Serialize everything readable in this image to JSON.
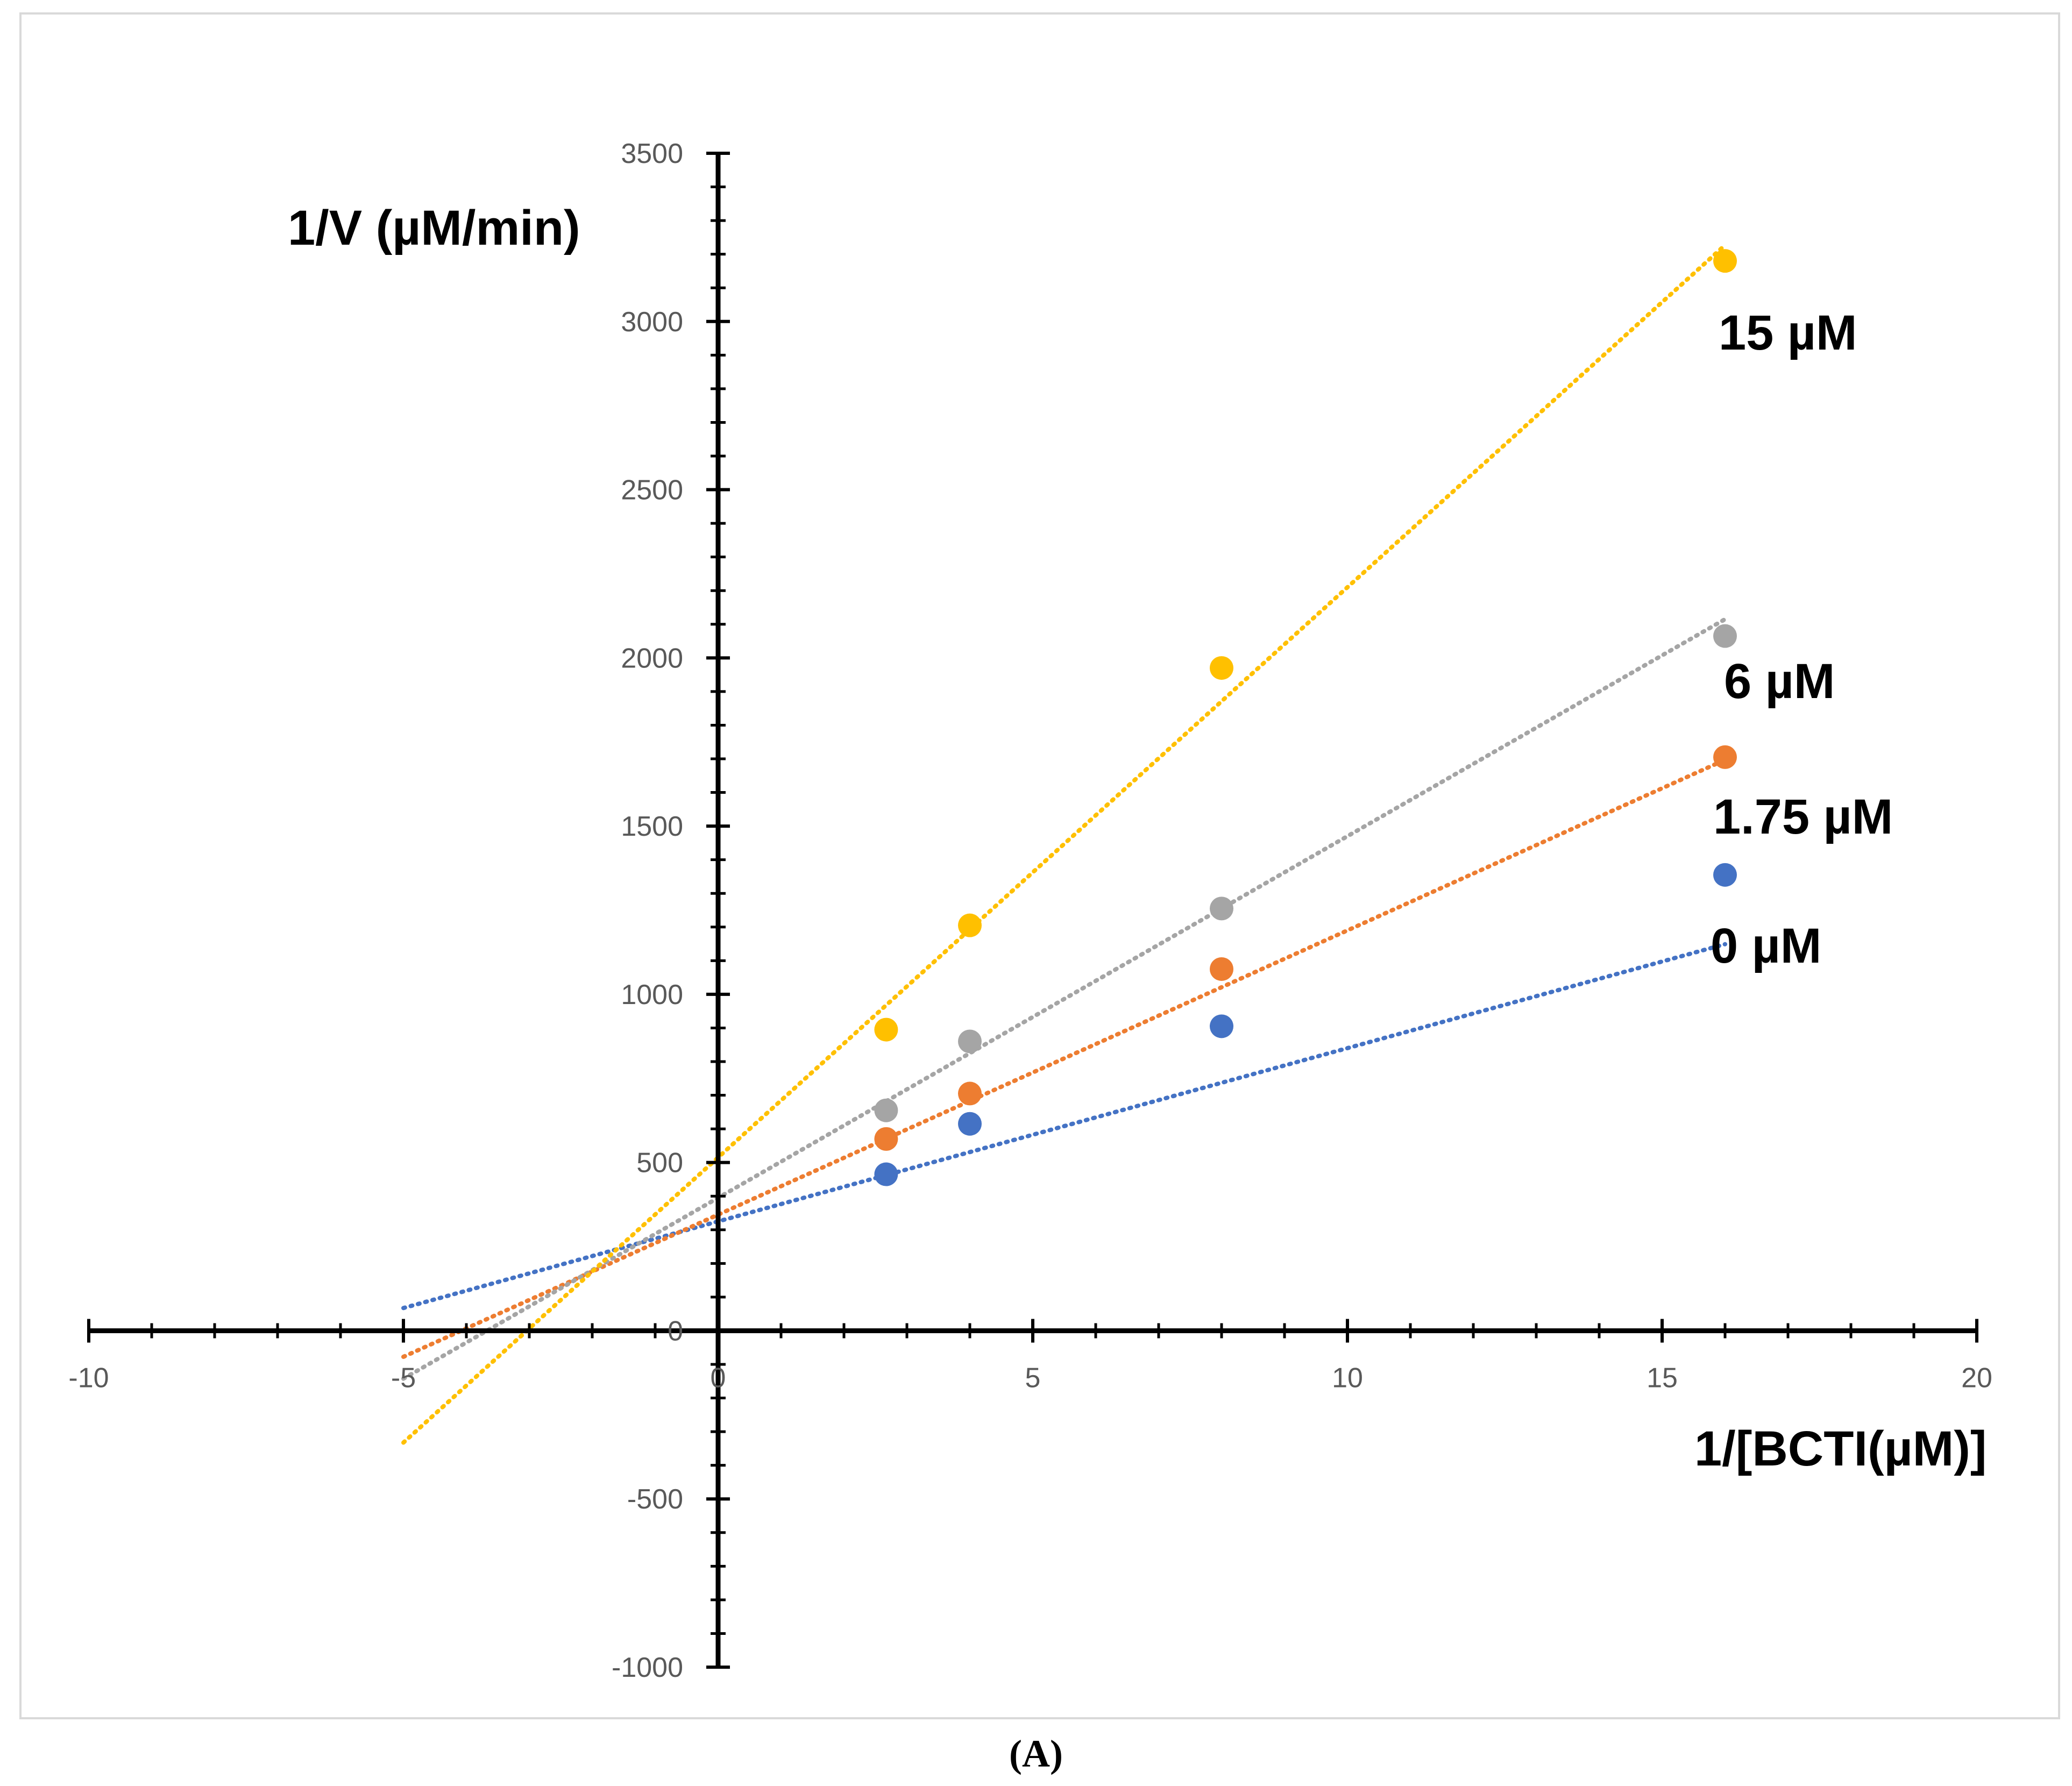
{
  "chart_data": {
    "type": "scatter",
    "title": "",
    "xlabel": "1/[BCTI(µM)]",
    "ylabel": "1/V (µM/min)",
    "xlim": [
      -10,
      20
    ],
    "ylim": [
      -1000,
      3500
    ],
    "x_ticks": [
      "-10",
      "-5",
      "0",
      "5",
      "10",
      "15",
      "20"
    ],
    "y_ticks": [
      "-1000",
      "-500",
      "0",
      "500",
      "1000",
      "1500",
      "2000",
      "2500",
      "3000",
      "3500"
    ],
    "trendline_style": "dotted",
    "trendline_x_range": [
      -5,
      16
    ],
    "panel_label": "(A)",
    "series": [
      {
        "name": "0 µM",
        "color": "#4472C4",
        "points": [
          [
            2.67,
            465
          ],
          [
            4,
            615
          ],
          [
            8,
            905
          ],
          [
            16,
            1355
          ]
        ],
        "trend": {
          "slope": 51.5,
          "intercept": 325
        }
      },
      {
        "name": "1.75 µM",
        "color": "#ED7D31",
        "points": [
          [
            2.67,
            570
          ],
          [
            4,
            705
          ],
          [
            8,
            1075
          ],
          [
            16,
            1705
          ]
        ],
        "trend": {
          "slope": 84.5,
          "intercept": 345
        }
      },
      {
        "name": "6 µM",
        "color": "#A5A5A5",
        "points": [
          [
            2.67,
            655
          ],
          [
            4,
            860
          ],
          [
            8,
            1255
          ],
          [
            16,
            2065
          ]
        ],
        "trend": {
          "slope": 107.5,
          "intercept": 395
        }
      },
      {
        "name": "15 µM",
        "color": "#FFC000",
        "points": [
          [
            2.67,
            895
          ],
          [
            4,
            1205
          ],
          [
            8,
            1970
          ],
          [
            16,
            3180
          ]
        ],
        "trend": {
          "slope": 169.5,
          "intercept": 515
        }
      }
    ]
  }
}
